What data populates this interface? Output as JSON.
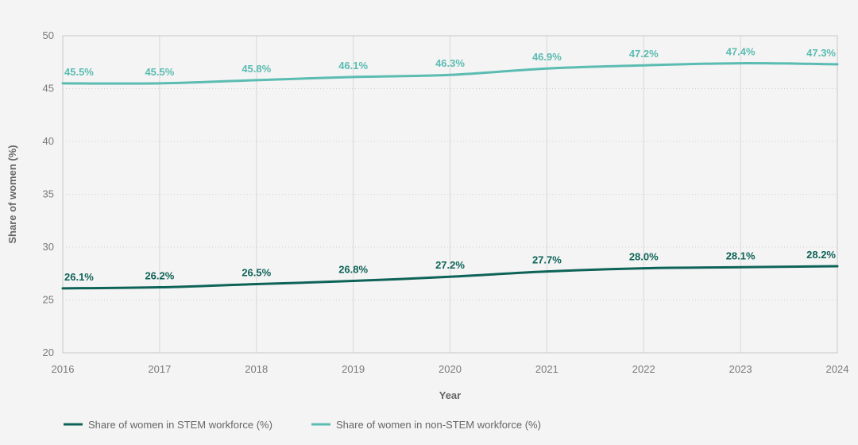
{
  "chart_data": {
    "type": "line",
    "x": [
      2016,
      2017,
      2018,
      2019,
      2020,
      2021,
      2022,
      2023,
      2024
    ],
    "xlabel": "Year",
    "ylabel": "Share of women (%)",
    "ylim": [
      20,
      50
    ],
    "yticks": [
      20,
      25,
      30,
      35,
      40,
      45,
      50
    ],
    "grid": true,
    "legend_position": "bottom-left",
    "series": [
      {
        "name": "Share of women in STEM workforce (%)",
        "color": "#0e6358",
        "values": [
          26.1,
          26.2,
          26.5,
          26.8,
          27.2,
          27.7,
          28.0,
          28.1,
          28.2
        ],
        "labels": [
          "26.1%",
          "26.2%",
          "26.5%",
          "26.8%",
          "27.2%",
          "27.7%",
          "28.0%",
          "28.1%",
          "28.2%"
        ]
      },
      {
        "name": "Share of women in non-STEM workforce (%)",
        "color": "#5bbcb2",
        "values": [
          45.5,
          45.5,
          45.8,
          46.1,
          46.3,
          46.9,
          47.2,
          47.4,
          47.3
        ],
        "labels": [
          "45.5%",
          "45.5%",
          "45.8%",
          "46.1%",
          "46.3%",
          "46.9%",
          "47.2%",
          "47.4%",
          "47.3%"
        ]
      }
    ]
  }
}
